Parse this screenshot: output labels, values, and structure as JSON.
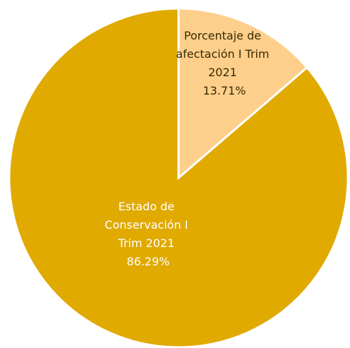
{
  "chart_data": {
    "type": "pie",
    "slices": [
      {
        "label_lines": [
          "Porcentaje de",
          "afectación I Trim",
          "2021"
        ],
        "value_label": "13.71%",
        "value": 13.71,
        "color": "#FDCF8B"
      },
      {
        "label_lines": [
          "Estado de",
          "Conservación I",
          "Trim 2021"
        ],
        "value_label": "86.29%",
        "value": 86.29,
        "color": "#E0AA00"
      }
    ]
  }
}
